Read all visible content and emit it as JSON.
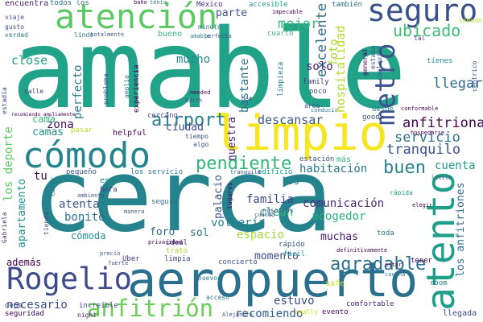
{
  "cloud": {
    "words": [
      {
        "text": "amable",
        "color": "#21a38a"
      },
      {
        "text": "cerca",
        "color": "#25838d"
      },
      {
        "text": "aeropuerto",
        "color": "#2a6f8e"
      },
      {
        "text": "limpio",
        "color": "#f6e620"
      },
      {
        "text": "cómodo",
        "color": "#25858e"
      },
      {
        "text": "atención",
        "color": "#5cc863"
      },
      {
        "text": "seguro",
        "color": "#3a528b"
      },
      {
        "text": "Rogelio",
        "color": "#3e4c8a"
      },
      {
        "text": "anfitrión",
        "color": "#6ccd5a"
      },
      {
        "text": "atento",
        "color": "#1f9e89"
      },
      {
        "text": "metro",
        "color": "#3a528b"
      },
      {
        "text": "pendiente",
        "color": "#32b67a"
      },
      {
        "text": "airport",
        "color": "#277f8e"
      },
      {
        "text": "agradable",
        "color": "#2d708e"
      },
      {
        "text": "buen",
        "color": "#26828e"
      },
      {
        "text": "ubicado",
        "color": "#3fbc73"
      },
      {
        "text": "descansar",
        "color": "#38588c"
      },
      {
        "text": "servicio",
        "color": "#2c718e"
      },
      {
        "text": "tranquilo",
        "color": "#3b528b"
      },
      {
        "text": "anfitriona",
        "color": "#440154"
      },
      {
        "text": "llegar",
        "color": "#31688e"
      },
      {
        "text": "excelente",
        "color": "#31688e"
      },
      {
        "text": "mejor",
        "color": "#35b779"
      },
      {
        "text": "foto",
        "color": "#a5db36"
      },
      {
        "text": "hospitalidad",
        "color": "#b5de2b"
      },
      {
        "text": "solo",
        "color": "#481f70"
      },
      {
        "text": "parte",
        "color": "#3b528b"
      },
      {
        "text": "close",
        "color": "#1fa187"
      },
      {
        "text": "mucho",
        "color": "#23898e"
      },
      {
        "text": "bastante",
        "color": "#2e6e8e"
      },
      {
        "text": "zona",
        "color": "#460b5e"
      },
      {
        "text": "perfecto",
        "color": "#2a788e"
      },
      {
        "text": "ciudad",
        "color": "#3e4989"
      },
      {
        "text": "nuestra",
        "color": "#481c6e"
      },
      {
        "text": "camas",
        "color": "#20928c"
      },
      {
        "text": "cuenta",
        "color": "#1f988b"
      },
      {
        "text": "habitación",
        "color": "#2a788e"
      },
      {
        "text": "comunicación",
        "color": "#472f7d"
      },
      {
        "text": "acogedor",
        "color": "#29af7f"
      },
      {
        "text": "atenta",
        "color": "#3b528b"
      },
      {
        "text": "bonito",
        "color": "#2c728e"
      },
      {
        "text": "familia",
        "color": "#3f4889"
      },
      {
        "text": "clean",
        "color": "#35b779"
      },
      {
        "text": "volvería",
        "color": "#26828e"
      },
      {
        "text": "espacio",
        "color": "#a2da37"
      },
      {
        "text": "foro",
        "color": "#30698e"
      },
      {
        "text": "sol",
        "color": "#2a788e"
      },
      {
        "text": "muchas",
        "color": "#481a6c"
      },
      {
        "text": "cómoda",
        "color": "#21908d"
      },
      {
        "text": "momento",
        "color": "#3e4a89"
      },
      {
        "text": "estuvo",
        "color": "#3e4a89"
      },
      {
        "text": "recomiendo",
        "color": "#365d8d"
      },
      {
        "text": "necesario",
        "color": "#3d4e8a"
      },
      {
        "text": "además",
        "color": "#440154"
      },
      {
        "text": "los deporte",
        "color": "#5ec962"
      },
      {
        "text": "apartamento",
        "color": "#21918c"
      },
      {
        "text": "palacio",
        "color": "#3b528b"
      },
      {
        "text": "los anfitriones",
        "color": "#306a8e"
      },
      {
        "text": "encuentra",
        "color": "#482071"
      },
      {
        "text": "todos los",
        "color": "#2c738e"
      },
      {
        "text": "bueno",
        "color": "#35b779"
      },
      {
        "text": "también",
        "color": "#2a788e"
      },
      {
        "text": "México",
        "color": "#472c7a"
      },
      {
        "text": "accesible",
        "color": "#20a386"
      },
      {
        "text": "cuarto",
        "color": "#3fbc73"
      },
      {
        "text": "limpieza",
        "color": "#2a788e"
      },
      {
        "text": "tienes",
        "color": "#238a8d"
      },
      {
        "text": "helpful",
        "color": "#46085c"
      },
      {
        "text": "cercano",
        "color": "#3e4989"
      },
      {
        "text": "experiencia",
        "color": "#440154"
      },
      {
        "text": "family",
        "color": "#453781"
      },
      {
        "text": "poco",
        "color": "#3b528b"
      },
      {
        "text": "desde",
        "color": "#287c8e"
      },
      {
        "text": "good",
        "color": "#3b528b"
      },
      {
        "text": "estación",
        "color": "#3b528b"
      },
      {
        "text": "más",
        "color": "#31b57b"
      },
      {
        "text": "tu",
        "color": "#440154"
      },
      {
        "text": "este",
        "color": "#21918c"
      },
      {
        "text": "hora",
        "color": "#3f4889"
      },
      {
        "text": "pequeño",
        "color": "#3b528b"
      },
      {
        "text": "los servicio",
        "color": "#2a788e"
      },
      {
        "text": "los",
        "color": "#26828e"
      },
      {
        "text": "cama",
        "color": "#35b779"
      },
      {
        "text": "pasar",
        "color": "#b8de29"
      },
      {
        "text": "segura",
        "color": "#2c718e"
      },
      {
        "text": "ideal",
        "color": "#472d7b"
      },
      {
        "text": "trato",
        "color": "#a0da39"
      },
      {
        "text": "limpia",
        "color": "#3e4989"
      },
      {
        "text": "concierto",
        "color": "#3b528b"
      },
      {
        "text": "Uber",
        "color": "#46327e"
      },
      {
        "text": "fácil",
        "color": "#1f968b"
      },
      {
        "text": "rápido",
        "color": "#3b528b"
      },
      {
        "text": "toda",
        "color": "#2c728e"
      },
      {
        "text": "tener",
        "color": "#440154"
      },
      {
        "text": "safe",
        "color": "#c2df23"
      },
      {
        "text": "room",
        "color": "#287d8e"
      },
      {
        "text": "comfortable",
        "color": "#482878"
      },
      {
        "text": "llegada",
        "color": "#3e4989"
      },
      {
        "text": "evento",
        "color": "#46085c"
      },
      {
        "text": "seguridad",
        "color": "#440154"
      },
      {
        "text": "increíble",
        "color": "#3e4a89"
      },
      {
        "text": "night",
        "color": "#481b6d"
      },
      {
        "text": "depa",
        "color": "#3b528b"
      },
      {
        "text": "acceso",
        "color": "#2a788e"
      },
      {
        "text": "really",
        "color": "#d5e21a"
      },
      {
        "text": "nuevo",
        "color": "#2a788e"
      },
      {
        "text": "Gabriela",
        "color": "#46337e"
      },
      {
        "text": "estadía",
        "color": "#3e4989"
      },
      {
        "text": "viaje",
        "color": "#3b528b"
      },
      {
        "text": "gusto",
        "color": "#3b528b"
      },
      {
        "text": "verdad",
        "color": "#2a788e"
      },
      {
        "text": "estaba",
        "color": "#3b528b"
      },
      {
        "text": "general",
        "color": "#440154"
      },
      {
        "text": "cualquier",
        "color": "#3b528b"
      },
      {
        "text": "problema",
        "color": "#3b528b"
      },
      {
        "text": "amplio",
        "color": "#2c728e"
      },
      {
        "text": "calle",
        "color": "#433e85"
      },
      {
        "text": "minuto",
        "color": "#2a788e"
      },
      {
        "text": "lindo",
        "color": "#2a788e"
      },
      {
        "text": "totalmente",
        "color": "#3b528b"
      },
      {
        "text": "cómodo",
        "color": "#b8de29"
      },
      {
        "text": "céntrico",
        "color": "#3b528b"
      },
      {
        "text": "tal",
        "color": "#433e85"
      },
      {
        "text": "area",
        "color": "#3b528b"
      },
      {
        "text": "conducir",
        "color": "#2a788e"
      },
      {
        "text": "tiempo",
        "color": "#3b528b"
      },
      {
        "text": "algo",
        "color": "#3b528b"
      },
      {
        "text": "lugares",
        "color": "#46085c"
      },
      {
        "text": "hospedarse",
        "color": "#440154"
      },
      {
        "text": "rápida",
        "color": "#1f988b"
      },
      {
        "text": "privacidad",
        "color": "#440154"
      },
      {
        "text": "Alejandra",
        "color": "#3b528b"
      },
      {
        "text": "definitivamente",
        "color": "#440154"
      },
      {
        "text": "precio",
        "color": "#3b528b"
      },
      {
        "text": "fuerte",
        "color": "#3b528b"
      },
      {
        "text": "cocina",
        "color": "#2a788e"
      },
      {
        "text": "nosotros",
        "color": "#3e4989"
      },
      {
        "text": "estar",
        "color": "#440154"
      },
      {
        "text": "baño",
        "color": "#440154"
      },
      {
        "text": "tenía",
        "color": "#2a788e"
      },
      {
        "text": "impecable",
        "color": "#440154"
      },
      {
        "text": "perfecta",
        "color": "#3b528b"
      },
      {
        "text": "amable",
        "color": "#2a788e"
      },
      {
        "text": "recomiendo ampliamente",
        "color": "#440154"
      },
      {
        "text": "Edith",
        "color": "#3b528b"
      },
      {
        "text": "needed",
        "color": "#440154"
      },
      {
        "text": "bed",
        "color": "#3b528b"
      },
      {
        "text": "edificio",
        "color": "#20928c"
      },
      {
        "text": "tranquila",
        "color": "#3b528b"
      },
      {
        "text": "comer",
        "color": "#2a788e"
      },
      {
        "text": "tienda",
        "color": "#3b528b"
      },
      {
        "text": "conformable",
        "color": "#440154"
      },
      {
        "text": "manera",
        "color": "#3b528b"
      },
      {
        "text": "little",
        "color": "#3b528b"
      },
      {
        "text": "ambiente",
        "color": "#3b528b"
      },
      {
        "text": "elegir",
        "color": "#440154"
      },
      {
        "text": "cuándo",
        "color": "#3b528b"
      }
    ]
  }
}
